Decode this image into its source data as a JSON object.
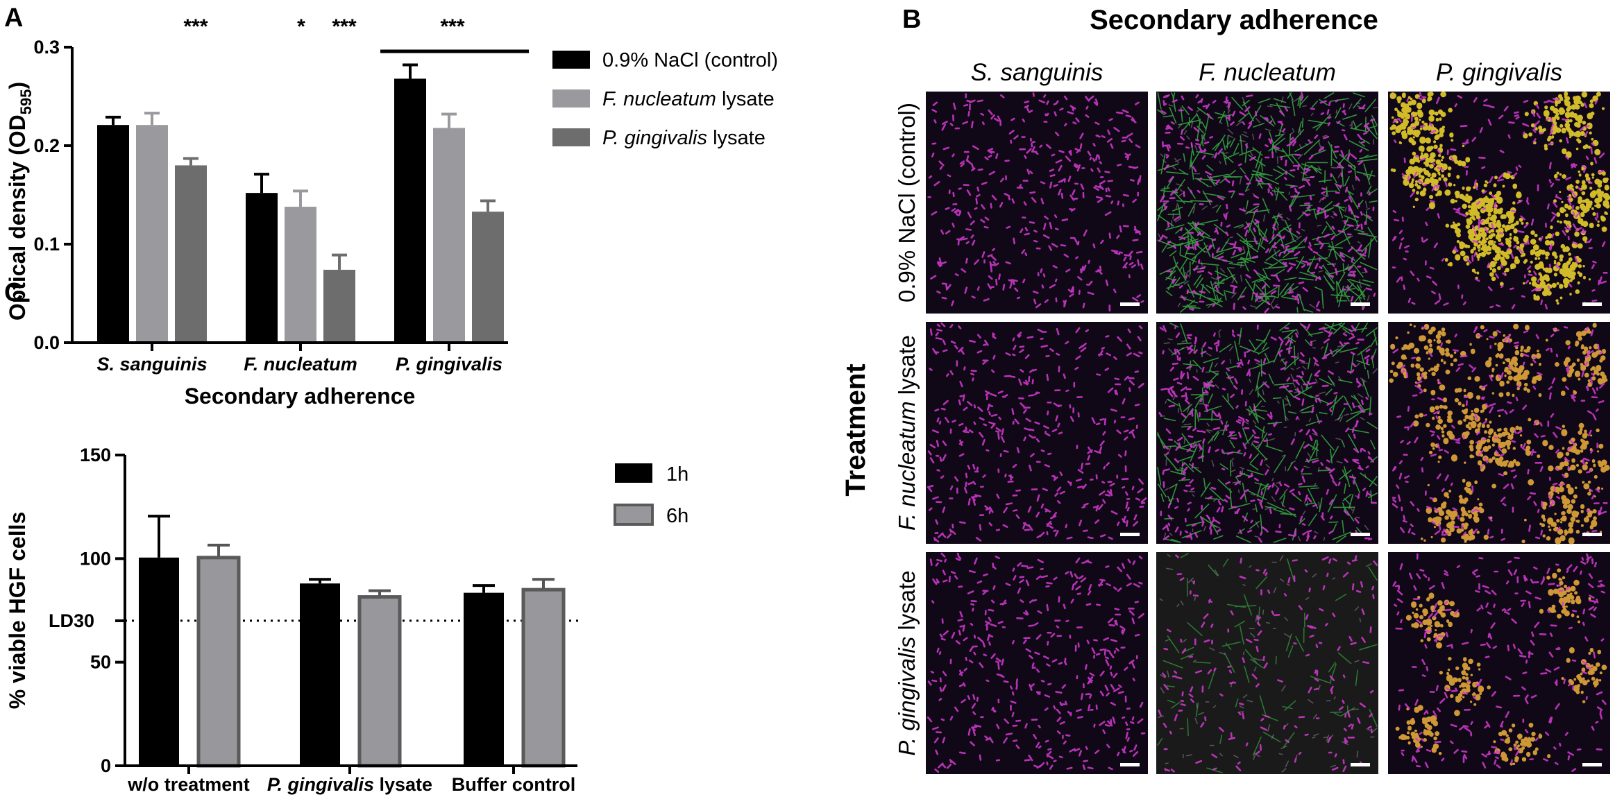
{
  "panels": {
    "A": "A",
    "B": "B",
    "C": "C"
  },
  "chart_data": [
    {
      "panel": "A",
      "type": "bar",
      "xlabel": "Secondary adherence",
      "ylabel_main": "Optical density (OD",
      "ylabel_sub": "595",
      "ylabel_close": ")",
      "ylim": [
        0,
        0.3
      ],
      "yticks": [
        "0.0",
        "0.1",
        "0.2",
        "0.3"
      ],
      "categories": [
        "S. sanguinis",
        "F. nucleatum",
        "P. gingivalis"
      ],
      "series": [
        {
          "name_pre": "0.9% NaCl (control)",
          "name_it": "",
          "name_post": "",
          "color": "#000000",
          "values": [
            0.221,
            0.152,
            0.268
          ],
          "errors": [
            0.008,
            0.019,
            0.014
          ]
        },
        {
          "name_pre": "",
          "name_it": "F. nucleatum",
          "name_post": " lysate",
          "color": "#9a9a9e",
          "values": [
            0.221,
            0.138,
            0.218
          ],
          "errors": [
            0.012,
            0.016,
            0.014
          ]
        },
        {
          "name_pre": "",
          "name_it": "P. gingivalis",
          "name_post": " lysate",
          "color": "#6d6d6d",
          "values": [
            0.18,
            0.074,
            0.133
          ],
          "errors": [
            0.007,
            0.015,
            0.011
          ]
        }
      ],
      "significance": [
        "***",
        "*",
        "***",
        "***"
      ],
      "legend_position": "right"
    },
    {
      "panel": "C",
      "type": "bar",
      "ylabel": "% viable HGF cells",
      "ylim": [
        0,
        150
      ],
      "yticks": [
        "0",
        "50",
        "100",
        "150"
      ],
      "reference_line": {
        "label": "LD30",
        "value": 70
      },
      "categories": [
        {
          "pre": "w/o treatment",
          "it": "",
          "post": ""
        },
        {
          "pre": "",
          "it": "P. gingivalis",
          "post": " lysate"
        },
        {
          "pre": "Buffer control",
          "it": "",
          "post": ""
        }
      ],
      "series": [
        {
          "name": "1h",
          "color": "#000000",
          "values": [
            100.5,
            88,
            83.5
          ],
          "errors": [
            20,
            2,
            3.5
          ]
        },
        {
          "name": "6h",
          "color": "#98989c",
          "values": [
            100.5,
            81.5,
            85
          ],
          "errors": [
            6,
            3,
            5
          ]
        }
      ],
      "legend_position": "right"
    }
  ],
  "panel_b": {
    "title": "Secondary adherence",
    "columns": [
      "S. sanguinis",
      "F. nucleatum",
      "P. gingivalis"
    ],
    "rows": [
      {
        "pre": "0.9% NaCl (control)",
        "it": "",
        "post": ""
      },
      {
        "pre": "",
        "it": "F. nucleatum",
        "post": " lysate"
      },
      {
        "pre": "",
        "it": "P. gingivalis",
        "post": " lysate"
      }
    ],
    "treatment_label": "Treatment",
    "colors": {
      "magenta": "#d63ad4",
      "green": "#3cc24a",
      "yellow": "#e8cf2a",
      "orange": "#e3a93a",
      "background": "#100816"
    }
  }
}
